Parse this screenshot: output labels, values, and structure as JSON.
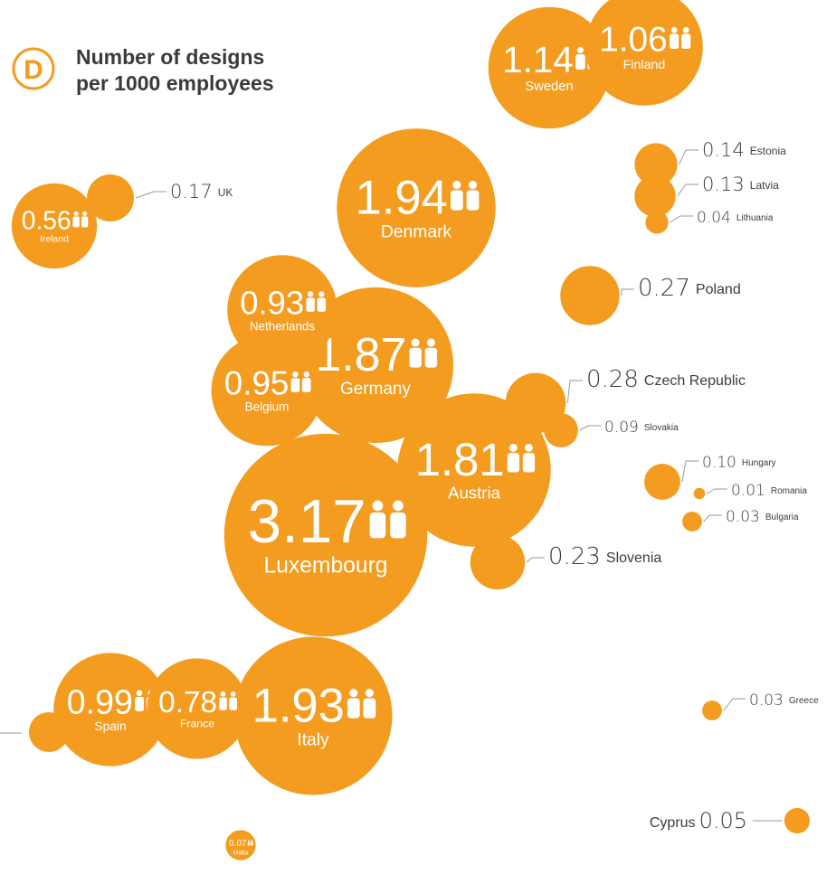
{
  "title": "Number of designs per 1000 employees",
  "title_lines": [
    "Number of designs",
    "per 1000 employees"
  ],
  "logo_letter": "D",
  "accent_color": "#f39c1f",
  "chart_data": {
    "type": "bubble",
    "title": "Number of designs per 1000 employees",
    "value_decimals": 2,
    "series": [
      {
        "country": "Luxembourg",
        "value": 3.17
      },
      {
        "country": "Denmark",
        "value": 1.94
      },
      {
        "country": "Italy",
        "value": 1.93
      },
      {
        "country": "Germany",
        "value": 1.87
      },
      {
        "country": "Austria",
        "value": 1.81
      },
      {
        "country": "Sweden",
        "value": 1.14
      },
      {
        "country": "Finland",
        "value": 1.06
      },
      {
        "country": "Spain",
        "value": 0.99
      },
      {
        "country": "Belgium",
        "value": 0.95
      },
      {
        "country": "Netherlands",
        "value": 0.93
      },
      {
        "country": "France",
        "value": 0.78
      },
      {
        "country": "Ireland",
        "value": 0.56
      },
      {
        "country": "Czech Republic",
        "value": 0.28
      },
      {
        "country": "Poland",
        "value": 0.27
      },
      {
        "country": "Slovenia",
        "value": 0.23
      },
      {
        "country": "UK",
        "value": 0.17
      },
      {
        "country": "Estonia",
        "value": 0.14
      },
      {
        "country": "Latvia",
        "value": 0.13
      },
      {
        "country": "Hungary",
        "value": 0.1
      },
      {
        "country": "Slovakia",
        "value": 0.09
      },
      {
        "country": "Malta",
        "value": 0.07
      },
      {
        "country": "Cyprus",
        "value": 0.05
      },
      {
        "country": "Lithuania",
        "value": 0.04
      },
      {
        "country": "Bulgaria",
        "value": 0.03
      },
      {
        "country": "Greece",
        "value": 0.03
      },
      {
        "country": "Romania",
        "value": 0.01
      }
    ]
  }
}
